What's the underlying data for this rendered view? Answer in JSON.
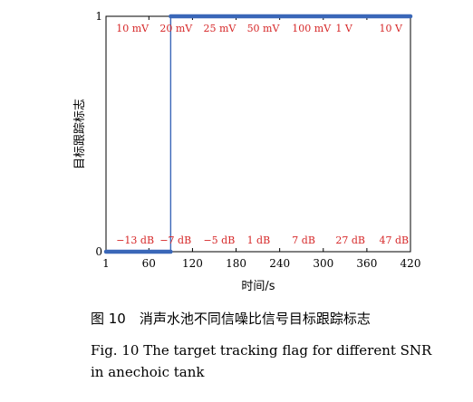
{
  "chart_data": {
    "type": "line",
    "xlabel": "时间/s",
    "ylabel": "目标跟踪标志",
    "xlim": [
      1,
      420
    ],
    "ylim": [
      0,
      1
    ],
    "xticks": [
      1,
      60,
      120,
      180,
      240,
      300,
      360,
      420
    ],
    "xtick_labels": [
      "1",
      "60",
      "120",
      "180",
      "240",
      "300",
      "360",
      "420"
    ],
    "yticks": [
      0,
      1
    ],
    "ytick_labels": [
      "0",
      "1"
    ],
    "grid": false,
    "series": [
      {
        "color": "#3a67b8",
        "x": [
          1,
          90,
          90,
          420
        ],
        "y": [
          0,
          0,
          1,
          1
        ]
      }
    ],
    "annotations_top": [
      {
        "text": "10 mV",
        "x": 15
      },
      {
        "text": "20 mV",
        "x": 75
      },
      {
        "text": "25 mV",
        "x": 135
      },
      {
        "text": "50 mV",
        "x": 195
      },
      {
        "text": "100 mV",
        "x": 257
      },
      {
        "text": "1 V",
        "x": 317
      },
      {
        "text": "10 V",
        "x": 377
      }
    ],
    "annotations_bottom": [
      {
        "text": "−13 dB",
        "x": 15
      },
      {
        "text": "−7 dB",
        "x": 75
      },
      {
        "text": "−5 dB",
        "x": 135
      },
      {
        "text": "1 dB",
        "x": 195
      },
      {
        "text": "7 dB",
        "x": 257
      },
      {
        "text": "27 dB",
        "x": 317
      },
      {
        "text": "47 dB",
        "x": 377
      }
    ],
    "annotation_color": "#d62728"
  },
  "caption": {
    "cn": "图 10　消声水池不同信噪比信号目标跟踪标志",
    "en_line1": "Fig. 10  The target tracking flag for different SNR",
    "en_line2": "in anechoic tank"
  }
}
